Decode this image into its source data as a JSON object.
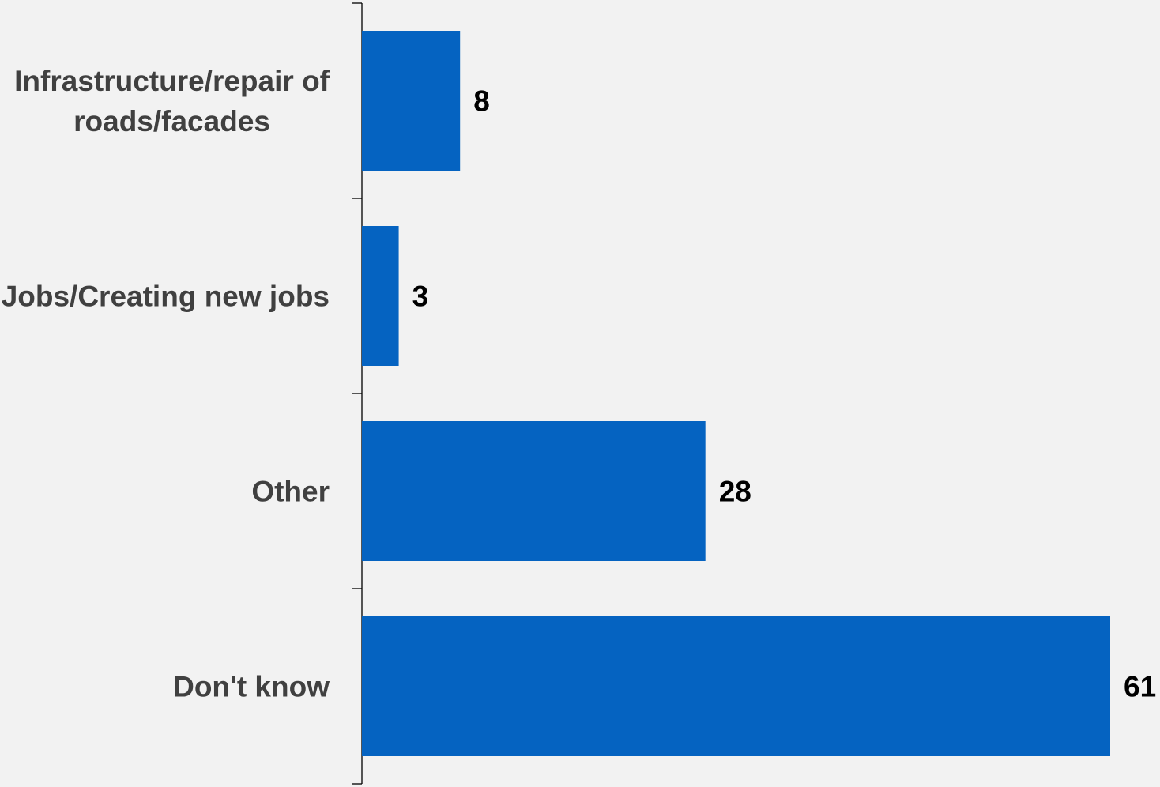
{
  "chart_data": {
    "type": "bar",
    "orientation": "horizontal",
    "categories": [
      [
        "Infrastructure/repair of",
        "roads/facades"
      ],
      [
        "Jobs/Creating new jobs"
      ],
      [
        "Other"
      ],
      [
        "Don't know"
      ]
    ],
    "values": [
      8,
      3,
      28,
      61
    ],
    "value_labels": [
      "8",
      "3",
      "28",
      "61"
    ],
    "xlim": [
      0,
      61
    ],
    "grid": false,
    "legend": "none",
    "colors": {
      "bar": "#0563c1",
      "background": "#f2f2f2",
      "category_text": "#404040",
      "value_text": "#000000",
      "axis": "#000000"
    }
  }
}
